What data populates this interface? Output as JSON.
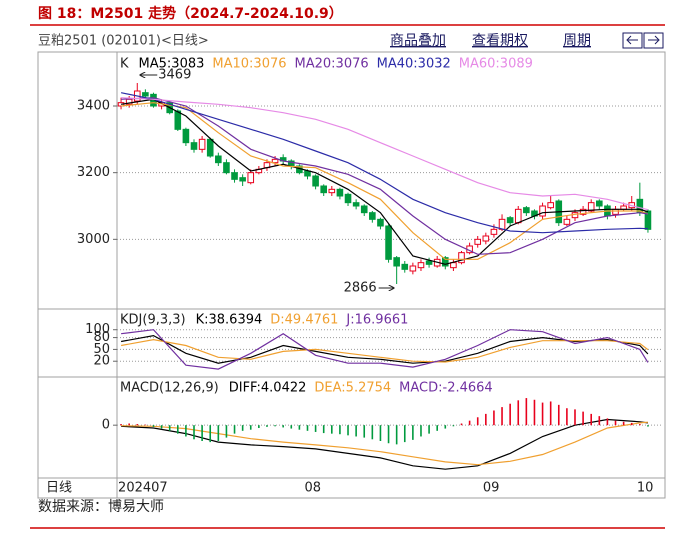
{
  "header": {
    "title": "图 18：M2501 走势（2024.7-2024.10.9）",
    "instrument": "豆粕2501 (020101)<日线>",
    "links": [
      "商品叠加",
      "查看期权",
      "周期"
    ]
  },
  "chart_data": [
    {
      "type": "candlestick",
      "legend_title": "K",
      "xlim": [
        -0.5,
        65.5
      ],
      "ylim": [
        2800,
        3550
      ],
      "yticks": [
        3000,
        3200,
        3400
      ],
      "grid": true,
      "up_color": "#e8001c",
      "down_color": "#009a3e",
      "open": [
        3400,
        3405,
        3415,
        3440,
        3435,
        3400,
        3410,
        3385,
        3330,
        3290,
        3270,
        3300,
        3250,
        3230,
        3200,
        3185,
        3170,
        3200,
        3215,
        3230,
        3245,
        3235,
        3220,
        3205,
        3190,
        3160,
        3140,
        3150,
        3135,
        3110,
        3100,
        3080,
        3060,
        3040,
        2945,
        2925,
        2905,
        2915,
        2935,
        2920,
        2945,
        2915,
        2930,
        2960,
        2985,
        2995,
        3015,
        3030,
        3065,
        3050,
        3095,
        3085,
        3070,
        3095,
        3115,
        3045,
        3065,
        3075,
        3085,
        3115,
        3100,
        3075,
        3090,
        3095,
        3120,
        3085
      ],
      "high": [
        3425,
        3430,
        3469,
        3450,
        3440,
        3420,
        3415,
        3390,
        3335,
        3300,
        3310,
        3305,
        3260,
        3240,
        3210,
        3195,
        3210,
        3220,
        3240,
        3250,
        3255,
        3240,
        3225,
        3210,
        3195,
        3165,
        3160,
        3155,
        3140,
        3120,
        3105,
        3085,
        3065,
        3045,
        2950,
        2935,
        2930,
        2940,
        2945,
        2950,
        2950,
        2940,
        2965,
        2990,
        3010,
        3020,
        3045,
        3075,
        3070,
        3100,
        3100,
        3090,
        3110,
        3130,
        3120,
        3070,
        3090,
        3100,
        3120,
        3120,
        3105,
        3100,
        3110,
        3130,
        3170,
        3090
      ],
      "low": [
        3390,
        3395,
        3405,
        3420,
        3395,
        3390,
        3375,
        3325,
        3280,
        3260,
        3260,
        3245,
        3220,
        3195,
        3170,
        3160,
        3165,
        3195,
        3205,
        3220,
        3225,
        3210,
        3195,
        3180,
        3150,
        3130,
        3130,
        3120,
        3100,
        3090,
        3070,
        3050,
        3030,
        2930,
        2866,
        2900,
        2895,
        2905,
        2915,
        2915,
        2910,
        2905,
        2925,
        2955,
        2975,
        2985,
        3005,
        3025,
        3040,
        3045,
        3070,
        3060,
        3060,
        3090,
        3040,
        3040,
        3055,
        3070,
        3080,
        3090,
        3060,
        3065,
        3085,
        3085,
        3070,
        3020
      ],
      "close": [
        3410,
        3420,
        3445,
        3430,
        3400,
        3410,
        3380,
        3330,
        3290,
        3270,
        3300,
        3250,
        3230,
        3200,
        3180,
        3175,
        3200,
        3210,
        3230,
        3240,
        3235,
        3220,
        3200,
        3190,
        3160,
        3140,
        3150,
        3130,
        3110,
        3100,
        3080,
        3060,
        3040,
        2940,
        2920,
        2910,
        2920,
        2930,
        2925,
        2940,
        2920,
        2930,
        2960,
        2980,
        3000,
        3010,
        3030,
        3060,
        3050,
        3090,
        3080,
        3070,
        3100,
        3110,
        3050,
        3060,
        3080,
        3090,
        3110,
        3100,
        3070,
        3090,
        3100,
        3110,
        3080,
        3030
      ],
      "series": [
        {
          "name": "MA5:3083",
          "color": "#000000",
          "x": [
            0,
            4,
            8,
            12,
            16,
            20,
            24,
            28,
            32,
            36,
            40,
            44,
            48,
            52,
            56,
            60,
            64,
            65
          ],
          "values": [
            3405,
            3420,
            3370,
            3280,
            3205,
            3225,
            3200,
            3150,
            3080,
            2950,
            2925,
            2950,
            3040,
            3080,
            3085,
            3090,
            3090,
            3083
          ]
        },
        {
          "name": "MA10:3076",
          "color": "#f0a030",
          "x": [
            0,
            4,
            8,
            12,
            16,
            20,
            24,
            28,
            32,
            36,
            40,
            44,
            48,
            52,
            56,
            60,
            64,
            65
          ],
          "values": [
            3400,
            3410,
            3395,
            3320,
            3250,
            3220,
            3215,
            3170,
            3120,
            3020,
            2940,
            2940,
            2990,
            3060,
            3075,
            3085,
            3085,
            3076
          ]
        },
        {
          "name": "MA20:3076",
          "color": "#7030a0",
          "x": [
            0,
            4,
            8,
            12,
            16,
            20,
            24,
            28,
            32,
            36,
            40,
            44,
            48,
            52,
            56,
            60,
            64,
            65
          ],
          "values": [
            3420,
            3425,
            3400,
            3340,
            3270,
            3235,
            3220,
            3195,
            3150,
            3070,
            3000,
            2955,
            2960,
            3000,
            3050,
            3070,
            3080,
            3076
          ]
        },
        {
          "name": "MA40:3032",
          "color": "#2c2ca8",
          "x": [
            0,
            4,
            8,
            12,
            16,
            20,
            24,
            28,
            32,
            36,
            40,
            44,
            48,
            52,
            56,
            60,
            64,
            65
          ],
          "values": [
            3440,
            3420,
            3390,
            3360,
            3330,
            3300,
            3265,
            3230,
            3180,
            3120,
            3080,
            3050,
            3025,
            3020,
            3025,
            3030,
            3033,
            3032
          ]
        },
        {
          "name": "MA60:3089",
          "color": "#e68ae6",
          "x": [
            0,
            4,
            8,
            12,
            16,
            20,
            24,
            28,
            32,
            36,
            40,
            44,
            48,
            52,
            56,
            60,
            64,
            65
          ],
          "values": [
            3425,
            3420,
            3412,
            3405,
            3395,
            3380,
            3360,
            3330,
            3290,
            3250,
            3210,
            3170,
            3140,
            3130,
            3135,
            3120,
            3095,
            3089
          ]
        }
      ],
      "annotations": [
        {
          "x": 2,
          "y": 3469
        },
        {
          "x": 34,
          "y": 2866
        }
      ]
    },
    {
      "type": "line",
      "legend_title": "KDJ(9,3,3)",
      "xlim": [
        -0.5,
        65.5
      ],
      "ylim": [
        -15,
        145
      ],
      "yticks": [
        20,
        50,
        80,
        100
      ],
      "grid": true,
      "series": [
        {
          "name": "K:38.6394",
          "color": "#000000",
          "x": [
            0,
            4,
            8,
            12,
            16,
            20,
            24,
            28,
            32,
            36,
            40,
            44,
            48,
            52,
            56,
            60,
            64,
            65
          ],
          "values": [
            70,
            85,
            40,
            15,
            30,
            60,
            45,
            30,
            25,
            15,
            20,
            40,
            70,
            80,
            70,
            75,
            60,
            38.6394
          ]
        },
        {
          "name": "D:49.4761",
          "color": "#f0a030",
          "x": [
            0,
            4,
            8,
            12,
            16,
            20,
            24,
            28,
            32,
            36,
            40,
            44,
            48,
            52,
            56,
            60,
            64,
            65
          ],
          "values": [
            60,
            75,
            60,
            30,
            25,
            45,
            50,
            40,
            30,
            20,
            18,
            30,
            55,
            72,
            72,
            72,
            65,
            49.4761
          ]
        },
        {
          "name": "J:16.9661",
          "color": "#7030a0",
          "x": [
            0,
            4,
            8,
            12,
            16,
            20,
            24,
            28,
            32,
            36,
            40,
            44,
            48,
            52,
            56,
            60,
            64,
            65
          ],
          "values": [
            90,
            100,
            10,
            0,
            40,
            90,
            35,
            15,
            15,
            5,
            25,
            60,
            100,
            95,
            65,
            80,
            50,
            16.9661
          ]
        }
      ]
    },
    {
      "type": "macd",
      "legend_title": "MACD(12,26,9)",
      "xlim": [
        -0.5,
        65.5
      ],
      "ylim": [
        -90,
        80
      ],
      "yticks": [
        0
      ],
      "grid": true,
      "xlabel": "日线",
      "xticks": [
        {
          "value": 0,
          "label": "202407"
        },
        {
          "value": 23,
          "label": "08"
        },
        {
          "value": 45,
          "label": "09"
        },
        {
          "value": 64,
          "label": "10"
        }
      ],
      "series": [
        {
          "name": "DIFF:4.0422",
          "color": "#000000",
          "x": [
            0,
            4,
            8,
            12,
            16,
            20,
            24,
            28,
            32,
            36,
            40,
            44,
            48,
            52,
            56,
            60,
            64,
            65
          ],
          "values": [
            -2,
            -5,
            -15,
            -30,
            -35,
            -38,
            -42,
            -50,
            -58,
            -72,
            -78,
            -72,
            -50,
            -20,
            0,
            10,
            6,
            4.0422
          ]
        },
        {
          "name": "DEA:5.2754",
          "color": "#f0a030",
          "x": [
            0,
            4,
            8,
            12,
            16,
            20,
            24,
            28,
            32,
            36,
            40,
            44,
            48,
            52,
            56,
            60,
            64,
            65
          ],
          "values": [
            -1,
            -2,
            -6,
            -15,
            -24,
            -30,
            -35,
            -40,
            -47,
            -56,
            -65,
            -70,
            -64,
            -52,
            -30,
            -5,
            4,
            5.2754
          ]
        },
        {
          "name": "MACD:-2.4664",
          "type": "bar",
          "color": "#7030a0",
          "up_color": "#e8001c",
          "down_color": "#009a3e",
          "values": [
            2,
            3,
            2,
            1,
            -3,
            -6,
            -10,
            -15,
            -20,
            -25,
            -28,
            -30,
            -28,
            -22,
            -15,
            -10,
            -8,
            -5,
            -3,
            -2,
            -4,
            -6,
            -8,
            -10,
            -12,
            -14,
            -15,
            -16,
            -18,
            -20,
            -22,
            -25,
            -28,
            -32,
            -34,
            -30,
            -26,
            -20,
            -15,
            -10,
            -6,
            -2,
            3,
            8,
            14,
            20,
            26,
            32,
            38,
            44,
            48,
            45,
            40,
            42,
            36,
            30,
            28,
            24,
            20,
            16,
            12,
            8,
            6,
            4,
            2,
            -2.4664
          ]
        }
      ]
    }
  ],
  "footer": {
    "source": "数据来源：博易大师"
  }
}
